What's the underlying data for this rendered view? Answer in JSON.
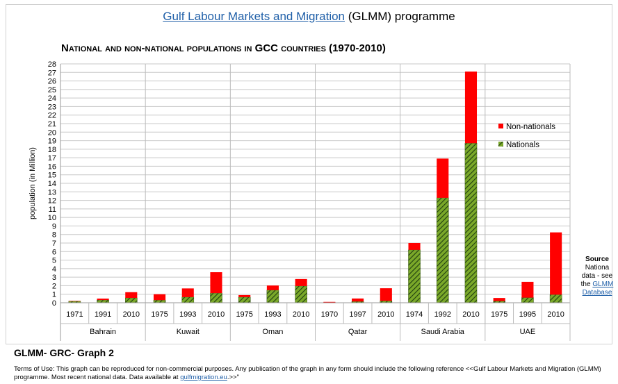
{
  "header": {
    "link_text": "Gulf Labour Markets and Migration",
    "rest_text": "(GLMM) programme"
  },
  "footer": {
    "graph_id": "GLMM- GRC- Graph 2",
    "terms_text": "Terms of Use: This graph can be reproduced for non-commercial purposes. Any publication of the graph in any form should include the following reference <<Gulf Labour Markets and Migration (GLMM) programme. Most recent national data. Data available at",
    "terms_link": "gulfmigration.eu",
    "terms_end": ".>>\""
  },
  "source_note": {
    "title": "Source",
    "line1": "Nationa",
    "line2": "data - see",
    "line3_prefix": "the",
    "link1": "GLMM",
    "link2": "Database"
  },
  "colors": {
    "nationals": "#7aa829",
    "nationals_hatch": "#1e3d10",
    "non_nationals": "#ff0000",
    "grid": "#c8c8c8",
    "link": "#1f5fa8"
  },
  "chart_data": {
    "type": "bar",
    "stacked": true,
    "title": "National and non-national populations in GCC countries (1970-2010)",
    "ylabel": "population (in Million)",
    "ylim": [
      0,
      28
    ],
    "yticks": [
      0,
      1,
      2,
      3,
      4,
      5,
      6,
      7,
      8,
      9,
      10,
      11,
      12,
      13,
      14,
      15,
      16,
      17,
      18,
      19,
      20,
      21,
      22,
      23,
      24,
      25,
      26,
      27,
      28
    ],
    "grid": true,
    "legend_position": "right",
    "groups": [
      {
        "country": "Bahrain",
        "years": [
          "1971",
          "1991",
          "2010"
        ]
      },
      {
        "country": "Kuwait",
        "years": [
          "1975",
          "1993",
          "2010"
        ]
      },
      {
        "country": "Oman",
        "years": [
          "1975",
          "1993",
          "2010"
        ]
      },
      {
        "country": "Qatar",
        "years": [
          "1970",
          "1997",
          "2010"
        ]
      },
      {
        "country": "Saudi Arabia",
        "years": [
          "1974",
          "1992",
          "2010"
        ]
      },
      {
        "country": "UAE",
        "years": [
          "1975",
          "1995",
          "2010"
        ]
      }
    ],
    "series": [
      {
        "name": "Nationals",
        "values": [
          0.18,
          0.32,
          0.57,
          0.31,
          0.66,
          1.13,
          0.66,
          1.48,
          1.96,
          0.03,
          0.15,
          0.23,
          6.2,
          12.3,
          18.7,
          0.2,
          0.6,
          0.95
        ]
      },
      {
        "name": "Non-nationals",
        "values": [
          0.04,
          0.17,
          0.67,
          0.69,
          1.02,
          2.45,
          0.24,
          0.54,
          0.82,
          0.07,
          0.35,
          1.47,
          0.8,
          4.6,
          8.4,
          0.36,
          1.85,
          7.3
        ]
      }
    ]
  }
}
